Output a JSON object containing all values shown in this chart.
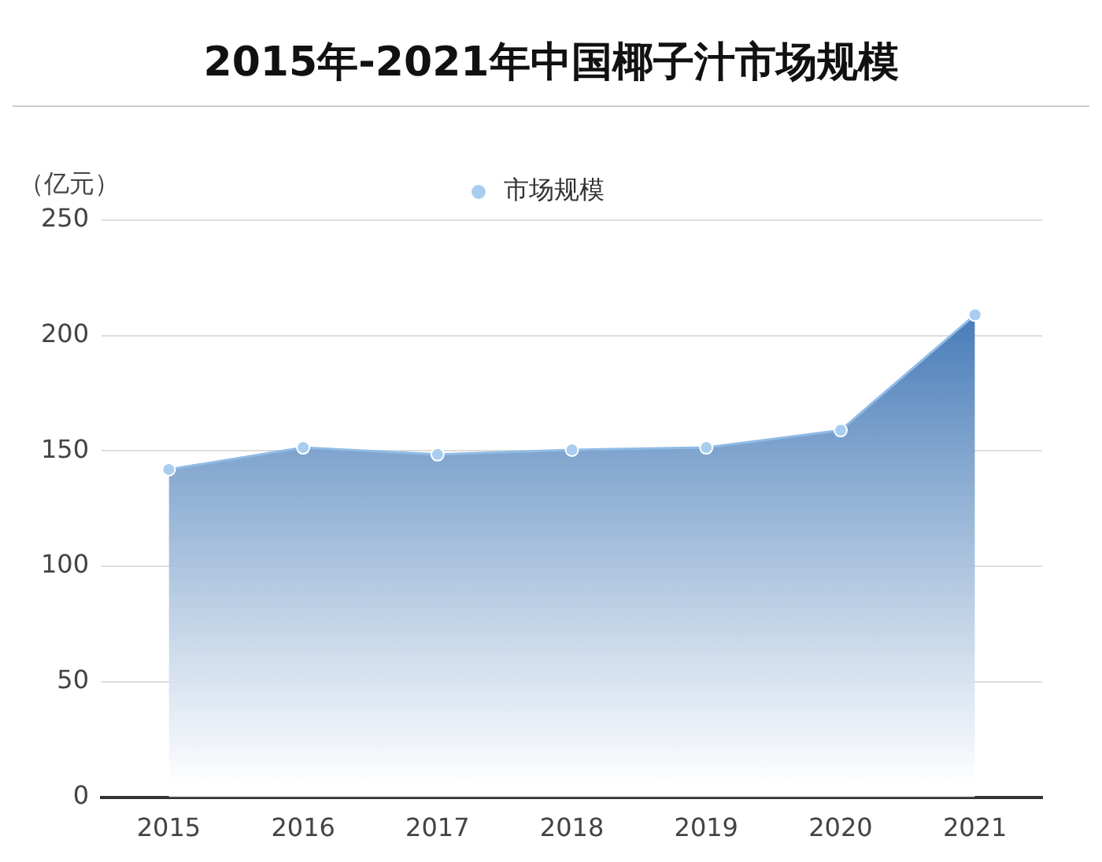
{
  "chart_data": {
    "type": "area",
    "title": "2015年-2021年中国椰子汁市场规模",
    "ylabel": "（亿元）",
    "categories": [
      "2015",
      "2016",
      "2017",
      "2018",
      "2019",
      "2020",
      "2021"
    ],
    "series": [
      {
        "name": "市场规模",
        "color": "#1f5fa8",
        "values": [
          142,
          151.5,
          148.5,
          150.5,
          151.5,
          159,
          209
        ]
      }
    ],
    "ylim": [
      0,
      250
    ],
    "yticks": [
      0,
      50,
      100,
      150,
      200,
      250
    ],
    "grid": "y",
    "legend": "top",
    "marker": "circle"
  }
}
